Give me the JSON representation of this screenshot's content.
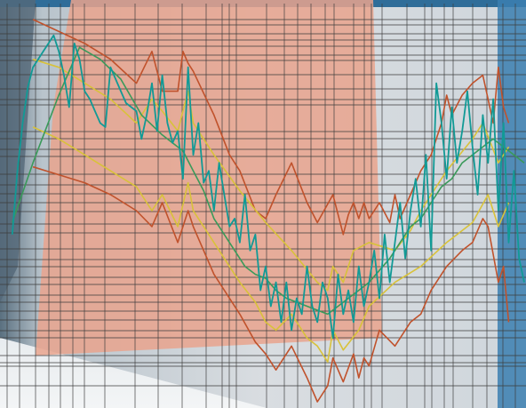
{
  "chart_data": {
    "type": "line",
    "title": "",
    "xlabel": "",
    "ylabel": "",
    "grid": true,
    "legend": "none",
    "x_range": [
      0,
      100
    ],
    "y_range": [
      0,
      100
    ],
    "colors": {
      "outer_band": "#c0522c",
      "inner_band": "#d8c23a",
      "signal": "#119a96",
      "ma": "#3a9a5a",
      "grid": "#3c3c3c",
      "bg_overlay": "#e7a28c"
    },
    "series": [
      {
        "name": "",
        "role": "upper-outer",
        "x": [
          5,
          10,
          15,
          20,
          25,
          28,
          30,
          33,
          34,
          35,
          36,
          40,
          43,
          45,
          48,
          50,
          52,
          55,
          58,
          60,
          63,
          65,
          66,
          67,
          68,
          69,
          70,
          72,
          74,
          75,
          76,
          78,
          80,
          82,
          84,
          85,
          86,
          88,
          90,
          92,
          93,
          94,
          95,
          96,
          97
        ],
        "y": [
          96,
          93,
          90,
          86,
          80,
          88,
          78,
          78,
          88,
          85,
          83,
          72,
          62,
          58,
          48,
          46,
          52,
          60,
          50,
          45,
          52,
          42,
          47,
          50,
          46,
          50,
          46,
          50,
          45,
          52,
          46,
          52,
          58,
          62,
          70,
          77,
          72,
          77,
          80,
          82,
          76,
          70,
          84,
          74,
          70
        ]
      },
      {
        "name": "",
        "role": "upper-inner",
        "x": [
          5,
          10,
          15,
          20,
          25,
          28,
          30,
          33,
          35,
          36,
          40,
          45,
          50,
          55,
          60,
          62,
          63,
          65,
          67,
          70,
          75,
          78,
          80,
          85,
          90,
          92,
          95,
          97
        ],
        "y": [
          86,
          84,
          80,
          76,
          70,
          76,
          73,
          68,
          78,
          70,
          62,
          53,
          45,
          38,
          30,
          28,
          34,
          30,
          38,
          40,
          38,
          43,
          48,
          58,
          66,
          70,
          60,
          64
        ]
      },
      {
        "name": "",
        "role": "lower-inner",
        "x": [
          5,
          10,
          15,
          20,
          25,
          28,
          30,
          33,
          35,
          36,
          40,
          45,
          48,
          50,
          52,
          55,
          58,
          60,
          62,
          63,
          65,
          68,
          70,
          75,
          80,
          85,
          90,
          93,
          95,
          97
        ],
        "y": [
          69,
          66,
          62,
          58,
          54,
          48,
          52,
          44,
          55,
          48,
          40,
          30,
          25,
          20,
          18,
          22,
          16,
          14,
          10,
          18,
          13,
          18,
          24,
          30,
          34,
          40,
          45,
          52,
          44,
          50
        ]
      },
      {
        "name": "",
        "role": "lower-outer",
        "x": [
          5,
          10,
          15,
          20,
          25,
          28,
          30,
          33,
          35,
          36,
          40,
          45,
          48,
          50,
          52,
          55,
          58,
          60,
          62,
          63,
          65,
          67,
          68,
          69,
          70,
          72,
          75,
          78,
          80,
          82,
          85,
          88,
          90,
          92,
          93,
          95,
          96,
          97
        ],
        "y": [
          59,
          57,
          55,
          52,
          48,
          44,
          50,
          40,
          48,
          44,
          32,
          22,
          15,
          12,
          8,
          14,
          6,
          0,
          4,
          11,
          5,
          12,
          6,
          11,
          9,
          18,
          14,
          20,
          22,
          28,
          34,
          38,
          40,
          46,
          44,
          30,
          34,
          20
        ]
      },
      {
        "name": "",
        "role": "moving-average",
        "x": [
          1,
          5,
          10,
          14,
          18,
          22,
          26,
          30,
          32,
          34,
          36,
          38,
          40,
          42,
          44,
          46,
          48,
          50,
          52,
          54,
          56,
          58,
          60,
          62,
          64,
          66,
          68,
          70,
          72,
          74,
          76,
          78,
          80,
          82,
          84,
          86,
          88,
          90,
          92,
          94,
          96,
          98,
          100
        ],
        "y": [
          45,
          60,
          77,
          89,
          86,
          81,
          72,
          67,
          65,
          63,
          58,
          53,
          46,
          42,
          38,
          34,
          32,
          31,
          28,
          26,
          25,
          24,
          23,
          22,
          24,
          26,
          28,
          30,
          33,
          36,
          40,
          44,
          46,
          50,
          54,
          56,
          60,
          62,
          64,
          66,
          64,
          62,
          60
        ]
      },
      {
        "name": "",
        "role": "signal",
        "x": [
          1,
          2,
          3,
          4,
          5,
          6,
          7,
          8,
          9,
          10,
          11,
          12,
          13,
          14,
          15,
          16,
          17,
          18,
          19,
          20,
          21,
          22,
          23,
          24,
          25,
          26,
          27,
          28,
          29,
          30,
          31,
          32,
          33,
          34,
          35,
          36,
          37,
          38,
          39,
          40,
          41,
          42,
          43,
          44,
          45,
          46,
          47,
          48,
          49,
          50,
          51,
          52,
          53,
          54,
          55,
          56,
          57,
          58,
          59,
          60,
          61,
          62,
          63,
          64,
          65,
          66,
          67,
          68,
          69,
          70,
          71,
          72,
          73,
          74,
          75,
          76,
          77,
          78,
          79,
          80,
          81,
          82,
          83,
          84,
          85,
          86,
          87,
          88,
          89,
          90,
          91,
          92,
          93,
          94,
          95,
          96,
          97,
          98,
          99,
          100
        ],
        "y": [
          42,
          58,
          70,
          79,
          84,
          86,
          88,
          90,
          92,
          88,
          82,
          74,
          90,
          86,
          78,
          76,
          73,
          70,
          69,
          84,
          81,
          78,
          75,
          74,
          73,
          66,
          72,
          80,
          68,
          82,
          70,
          65,
          68,
          56,
          84,
          62,
          70,
          55,
          58,
          48,
          60,
          52,
          44,
          46,
          40,
          52,
          38,
          42,
          28,
          34,
          24,
          30,
          20,
          30,
          18,
          26,
          22,
          34,
          24,
          20,
          30,
          26,
          16,
          32,
          22,
          28,
          20,
          34,
          24,
          30,
          38,
          26,
          42,
          30,
          40,
          50,
          36,
          48,
          56,
          44,
          62,
          38,
          80,
          70,
          56,
          74,
          60,
          68,
          78,
          64,
          52,
          72,
          60,
          76,
          48,
          70,
          40,
          58,
          36,
          30
        ]
      }
    ]
  }
}
